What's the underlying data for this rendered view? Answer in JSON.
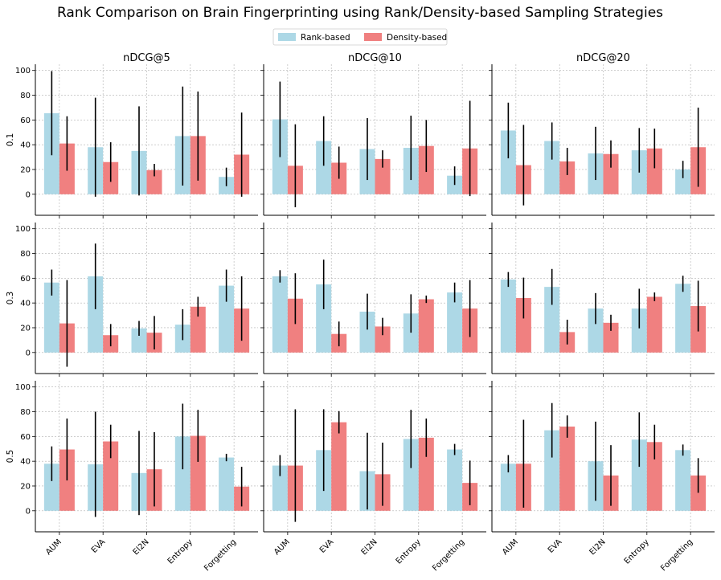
{
  "chart_data": {
    "type": "bar",
    "title": "Rank Comparison on Brain Fingerprinting using Rank/Density-based Sampling Strategies",
    "legend": {
      "placement": "top-center",
      "entries": [
        {
          "name": "Rank-based",
          "color": "#add8e6"
        },
        {
          "name": "Density-based",
          "color": "#f08080"
        }
      ]
    },
    "categories": [
      "AUM",
      "EVA",
      "El2N",
      "Entropy",
      "Forgetting"
    ],
    "column_titles": [
      "nDCG@5",
      "nDCG@10",
      "nDCG@20"
    ],
    "row_labels": [
      "0.1",
      "0.3",
      "0.5"
    ],
    "yticks": [
      "0",
      "20",
      "40",
      "60",
      "80",
      "100"
    ],
    "ylim": [
      -17,
      105
    ],
    "grid": true,
    "panels": [
      {
        "row": "0.1",
        "metric": "nDCG@5",
        "rank": {
          "values": [
            65.5,
            38,
            35,
            47,
            14
          ],
          "err": [
            34,
            40,
            36,
            40,
            7.5
          ]
        },
        "density": {
          "values": [
            41,
            26,
            19.5,
            47,
            32
          ],
          "err": [
            22,
            16,
            5,
            36,
            34
          ]
        }
      },
      {
        "row": "0.1",
        "metric": "nDCG@10",
        "rank": {
          "values": [
            60.5,
            43,
            36.5,
            37.5,
            15
          ],
          "err": [
            30.5,
            20,
            25,
            26,
            7.5
          ]
        },
        "density": {
          "values": [
            23,
            25.5,
            28.5,
            39,
            37
          ],
          "err": [
            33.5,
            13,
            7,
            21,
            38.5
          ]
        }
      },
      {
        "row": "0.1",
        "metric": "nDCG@20",
        "rank": {
          "values": [
            51.5,
            43,
            33,
            35.5,
            20
          ],
          "err": [
            22.5,
            15,
            21.5,
            18,
            7
          ]
        },
        "density": {
          "values": [
            23.5,
            26.5,
            32.5,
            37,
            38
          ],
          "err": [
            32.5,
            11,
            11,
            16,
            32
          ]
        }
      },
      {
        "row": "0.3",
        "metric": "nDCG@5",
        "rank": {
          "values": [
            56.5,
            61.5,
            19.5,
            22.5,
            54
          ],
          "err": [
            10.5,
            26.5,
            6,
            12.5,
            13
          ]
        },
        "density": {
          "values": [
            23.5,
            14,
            16,
            37,
            35.5
          ],
          "err": [
            35,
            9,
            13.5,
            8,
            26
          ]
        }
      },
      {
        "row": "0.3",
        "metric": "nDCG@10",
        "rank": {
          "values": [
            61.5,
            55,
            33,
            31.5,
            48.5
          ],
          "err": [
            5,
            20,
            14.5,
            15.5,
            8
          ]
        },
        "density": {
          "values": [
            43.5,
            15,
            21,
            43,
            35.5
          ],
          "err": [
            20.5,
            10,
            7,
            3,
            23
          ]
        }
      },
      {
        "row": "0.3",
        "metric": "nDCG@20",
        "rank": {
          "values": [
            59,
            53,
            35.5,
            35.5,
            55.5
          ],
          "err": [
            6,
            14.5,
            12.5,
            16,
            6.5
          ]
        },
        "density": {
          "values": [
            44,
            16.5,
            24,
            45,
            37.5
          ],
          "err": [
            16.5,
            10,
            6.5,
            3.5,
            20.5
          ]
        }
      },
      {
        "row": "0.5",
        "metric": "nDCG@5",
        "rank": {
          "values": [
            38,
            37.5,
            30.5,
            60,
            43
          ],
          "err": [
            14,
            42.5,
            34,
            26.5,
            3
          ]
        },
        "density": {
          "values": [
            49.5,
            56,
            33.5,
            60.5,
            19.5
          ],
          "err": [
            25,
            13.5,
            30,
            21,
            16
          ]
        }
      },
      {
        "row": "0.5",
        "metric": "nDCG@10",
        "rank": {
          "values": [
            36.5,
            49,
            32,
            58,
            49.5
          ],
          "err": [
            8.5,
            33,
            31,
            23.5,
            4.5
          ]
        },
        "density": {
          "values": [
            36.5,
            71.5,
            29.5,
            59,
            22.5
          ],
          "err": [
            45.5,
            9,
            25.5,
            15.5,
            18
          ]
        }
      },
      {
        "row": "0.5",
        "metric": "nDCG@20",
        "rank": {
          "values": [
            38,
            65,
            40,
            57.5,
            49
          ],
          "err": [
            7,
            22,
            32,
            22,
            4.5
          ]
        },
        "density": {
          "values": [
            38,
            68,
            28.5,
            55.5,
            28.5
          ],
          "err": [
            35.5,
            9,
            24.5,
            14,
            14
          ]
        }
      }
    ]
  }
}
